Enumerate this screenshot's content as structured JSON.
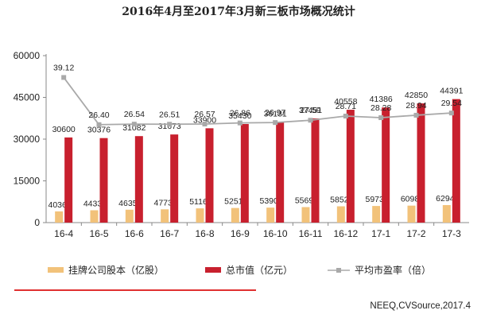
{
  "colors": {
    "stocks": "#F2C27A",
    "market_cap": "#C8202E",
    "pe_line": "#A9A9A9",
    "pe_marker": "#A9A9A9",
    "axis": "#888888",
    "footer_rule": "#E03030"
  },
  "source": "NEEQ,CVSource,2017.4",
  "chart_data": {
    "type": "bar",
    "title": "2016年4月至2017年3月新三板市场概况统计",
    "categories": [
      "16-4",
      "16-5",
      "16-6",
      "16-7",
      "16-8",
      "16-9",
      "16-10",
      "16-11",
      "16-12",
      "17-1",
      "17-2",
      "17-3"
    ],
    "ylim": [
      0,
      60000
    ],
    "yticks": [
      "0",
      "15000",
      "30000",
      "45000",
      "60000"
    ],
    "y2lim": [
      0,
      45
    ],
    "series": [
      {
        "name": "挂牌公司股本（亿股）",
        "type": "bar",
        "values": [
          4036,
          4433,
          4635,
          4773,
          5116,
          5251,
          5390,
          5569,
          5852,
          5973,
          6098,
          6294
        ]
      },
      {
        "name": "总市值（亿元）",
        "type": "bar",
        "values": [
          30600,
          30376,
          31082,
          31673,
          33900,
          35430,
          36131,
          37451,
          40558,
          41386,
          42850,
          44391
        ]
      },
      {
        "name": "平均市盈率（倍）",
        "type": "line",
        "axis": "secondary",
        "values": [
          39.12,
          26.4,
          26.54,
          26.51,
          26.57,
          26.86,
          26.97,
          27.59,
          28.71,
          28.28,
          28.94,
          29.54
        ],
        "labels": [
          "39.12",
          "26.40",
          "26.54",
          "26.51",
          "26.57",
          "26.86",
          "26.97",
          "27.59",
          "28.71",
          "28.28",
          "28.94",
          "29.54"
        ]
      }
    ],
    "legend_position": "bottom",
    "grid": false
  }
}
